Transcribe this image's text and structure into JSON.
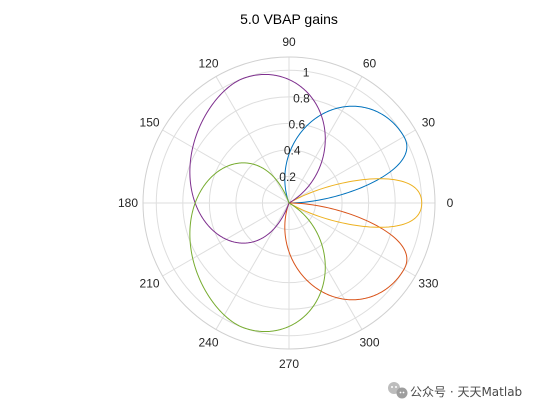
{
  "chart_data": {
    "type": "line",
    "coordinate_system": "polar",
    "title": "5.0 VBAP gains",
    "theta_unit": "degrees",
    "theta_tick_labels": [
      "0",
      "30",
      "60",
      "90",
      "120",
      "150",
      "180",
      "210",
      "240",
      "270",
      "300",
      "330"
    ],
    "r_tick_labels": [
      "0.2",
      "0.4",
      "0.6",
      "0.8",
      "1"
    ],
    "rlim": [
      0,
      1.1
    ],
    "grid": true,
    "legend": "none",
    "series": [
      {
        "color": "#0072BD",
        "speakers_deg": [
          0,
          30,
          110
        ],
        "lobe_shape": "VBAP gain, speaker at 30 deg",
        "peak_value": 0.98
      },
      {
        "color": "#D95319",
        "speakers_deg": [
          250,
          330,
          0
        ],
        "lobe_shape": "VBAP gain, speaker at 330 deg",
        "peak_value": 0.98
      },
      {
        "color": "#EDB120",
        "speakers_deg": [
          330,
          0,
          30
        ],
        "lobe_shape": "VBAP gain, speaker at 0 deg",
        "peak_value": 1.0
      },
      {
        "color": "#7E2F8E",
        "speakers_deg": [
          30,
          110,
          250
        ],
        "lobe_shape": "VBAP gain, speaker at 110 deg",
        "peak_value": 1.0
      },
      {
        "color": "#77AC30",
        "speakers_deg": [
          110,
          250,
          330
        ],
        "lobe_shape": "VBAP gain, speaker at 250 deg",
        "peak_value": 1.0
      }
    ]
  },
  "watermark": {
    "icon": "wechat-logo-icon",
    "text": "公众号 · 天天Matlab"
  }
}
